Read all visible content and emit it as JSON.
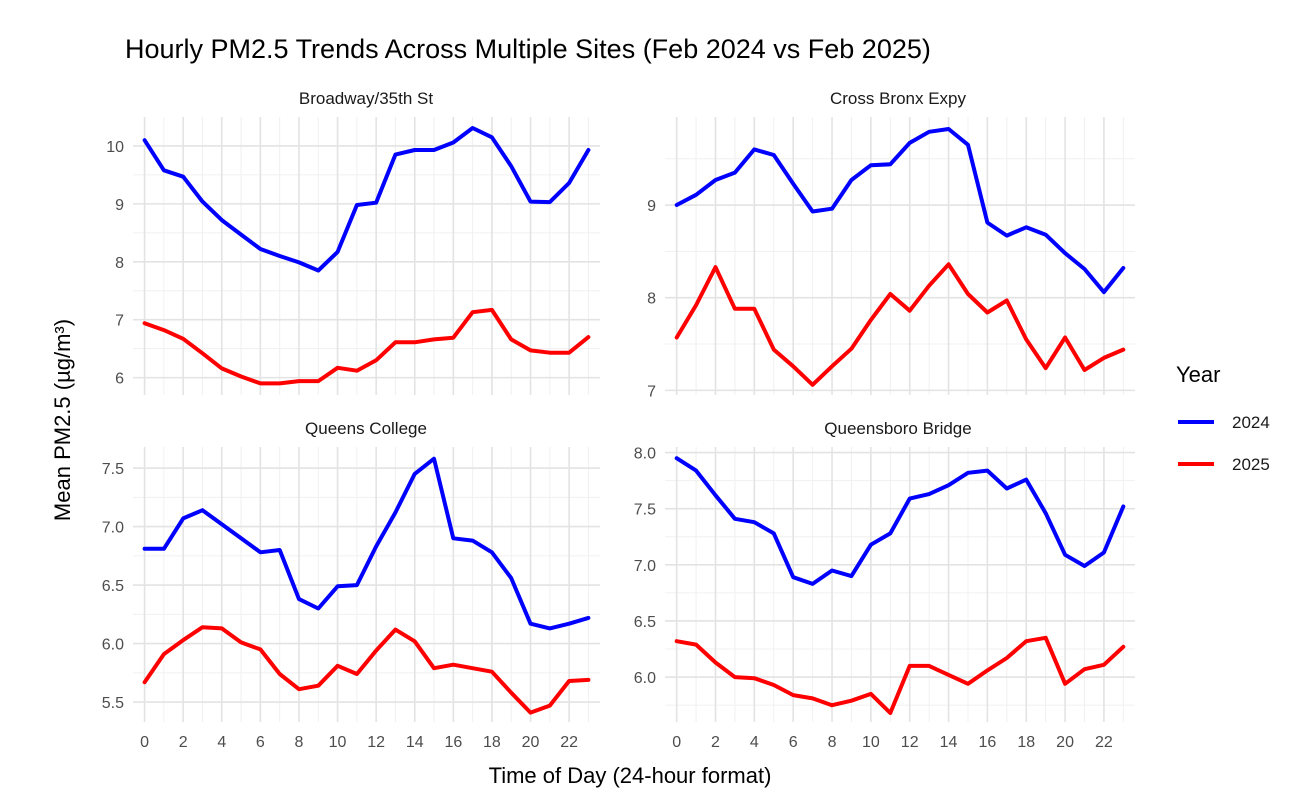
{
  "title": "Hourly PM2.5 Trends Across Multiple Sites (Feb 2024 vs Feb 2025)",
  "xlabel": "Time of Day (24-hour format)",
  "ylabel": "Mean PM2.5 (µg/m³)",
  "legend": {
    "title": "Year",
    "placement": "right",
    "entries": [
      {
        "label": "2024",
        "color": "#0000ff"
      },
      {
        "label": "2025",
        "color": "#ff0000"
      }
    ]
  },
  "chart_data": [
    {
      "type": "line",
      "panel": "Broadway/35th St",
      "x": [
        0,
        1,
        2,
        3,
        4,
        5,
        6,
        7,
        8,
        9,
        10,
        11,
        12,
        13,
        14,
        15,
        16,
        17,
        18,
        19,
        20,
        21,
        22,
        23
      ],
      "xticks": [
        0,
        2,
        4,
        6,
        8,
        10,
        12,
        14,
        16,
        18,
        20,
        22
      ],
      "xlim": [
        -0.6,
        23.6
      ],
      "yticks": [
        6,
        7,
        8,
        9,
        10
      ],
      "ylim": [
        5.7,
        10.5
      ],
      "series": [
        {
          "name": "2024",
          "color": "#0000ff",
          "values": [
            10.1,
            9.58,
            9.47,
            9.04,
            8.72,
            8.47,
            8.22,
            8.1,
            7.99,
            7.85,
            8.17,
            8.98,
            9.02,
            9.85,
            9.93,
            9.93,
            10.06,
            10.31,
            10.15,
            9.65,
            9.04,
            9.03,
            9.36,
            9.93
          ]
        },
        {
          "name": "2025",
          "color": "#ff0000",
          "values": [
            6.94,
            6.82,
            6.67,
            6.42,
            6.16,
            6.02,
            5.9,
            5.9,
            5.94,
            5.94,
            6.17,
            6.12,
            6.3,
            6.61,
            6.61,
            6.66,
            6.69,
            7.13,
            7.17,
            6.66,
            6.47,
            6.43,
            6.43,
            6.7
          ]
        }
      ]
    },
    {
      "type": "line",
      "panel": "Cross Bronx Expy",
      "x": [
        0,
        1,
        2,
        3,
        4,
        5,
        6,
        7,
        8,
        9,
        10,
        11,
        12,
        13,
        14,
        15,
        16,
        17,
        18,
        19,
        20,
        21,
        22,
        23
      ],
      "xticks": [
        0,
        2,
        4,
        6,
        8,
        10,
        12,
        14,
        16,
        18,
        20,
        22
      ],
      "xlim": [
        -0.6,
        23.6
      ],
      "yticks": [
        7,
        8,
        9
      ],
      "ylim": [
        6.95,
        9.95
      ],
      "series": [
        {
          "name": "2024",
          "color": "#0000ff",
          "values": [
            9.0,
            9.11,
            9.27,
            9.35,
            9.6,
            9.54,
            9.23,
            8.93,
            8.96,
            9.27,
            9.43,
            9.44,
            9.67,
            9.79,
            9.82,
            9.65,
            8.81,
            8.67,
            8.76,
            8.68,
            8.48,
            8.31,
            8.06,
            8.32
          ]
        },
        {
          "name": "2025",
          "color": "#ff0000",
          "values": [
            7.57,
            7.92,
            8.33,
            7.88,
            7.88,
            7.44,
            7.26,
            7.06,
            7.26,
            7.45,
            7.76,
            8.04,
            7.86,
            8.13,
            8.36,
            8.04,
            7.84,
            7.97,
            7.55,
            7.24,
            7.57,
            7.22,
            7.35,
            7.44
          ]
        }
      ]
    },
    {
      "type": "line",
      "panel": "Queens College",
      "x": [
        0,
        1,
        2,
        3,
        4,
        5,
        6,
        7,
        8,
        9,
        10,
        11,
        12,
        13,
        14,
        15,
        16,
        17,
        18,
        19,
        20,
        21,
        22,
        23
      ],
      "xticks": [
        0,
        2,
        4,
        6,
        8,
        10,
        12,
        14,
        16,
        18,
        20,
        22
      ],
      "xlim": [
        -0.6,
        23.6
      ],
      "yticks": [
        5.5,
        6.0,
        6.5,
        7.0,
        7.5
      ],
      "ylim": [
        5.33,
        7.68
      ],
      "series": [
        {
          "name": "2024",
          "color": "#0000ff",
          "values": [
            6.81,
            6.81,
            7.07,
            7.14,
            7.02,
            6.9,
            6.78,
            6.8,
            6.38,
            6.3,
            6.49,
            6.5,
            6.83,
            7.12,
            7.45,
            7.58,
            6.9,
            6.88,
            6.78,
            6.56,
            6.17,
            6.13,
            6.17,
            6.22
          ]
        },
        {
          "name": "2025",
          "color": "#ff0000",
          "values": [
            5.67,
            5.91,
            6.03,
            6.14,
            6.13,
            6.01,
            5.95,
            5.74,
            5.61,
            5.64,
            5.81,
            5.74,
            5.94,
            6.12,
            6.02,
            5.79,
            5.82,
            5.79,
            5.76,
            5.58,
            5.41,
            5.47,
            5.68,
            5.69
          ]
        }
      ]
    },
    {
      "type": "line",
      "panel": "Queensboro Bridge",
      "x": [
        0,
        1,
        2,
        3,
        4,
        5,
        6,
        7,
        8,
        9,
        10,
        11,
        12,
        13,
        14,
        15,
        16,
        17,
        18,
        19,
        20,
        21,
        22,
        23
      ],
      "xticks": [
        0,
        2,
        4,
        6,
        8,
        10,
        12,
        14,
        16,
        18,
        20,
        22
      ],
      "xlim": [
        -0.6,
        23.6
      ],
      "yticks": [
        6.0,
        6.5,
        7.0,
        7.5,
        8.0
      ],
      "ylim": [
        5.6,
        8.05
      ],
      "series": [
        {
          "name": "2024",
          "color": "#0000ff",
          "values": [
            7.95,
            7.84,
            7.62,
            7.41,
            7.38,
            7.28,
            6.89,
            6.83,
            6.95,
            6.9,
            7.18,
            7.28,
            7.59,
            7.63,
            7.71,
            7.82,
            7.84,
            7.68,
            7.76,
            7.46,
            7.09,
            6.99,
            7.11,
            7.52
          ]
        },
        {
          "name": "2025",
          "color": "#ff0000",
          "values": [
            6.32,
            6.29,
            6.13,
            6.0,
            5.99,
            5.93,
            5.84,
            5.81,
            5.75,
            5.79,
            5.85,
            5.68,
            6.1,
            6.1,
            6.02,
            5.94,
            6.06,
            6.17,
            6.32,
            6.35,
            5.94,
            6.07,
            6.11,
            6.27
          ]
        }
      ]
    }
  ]
}
